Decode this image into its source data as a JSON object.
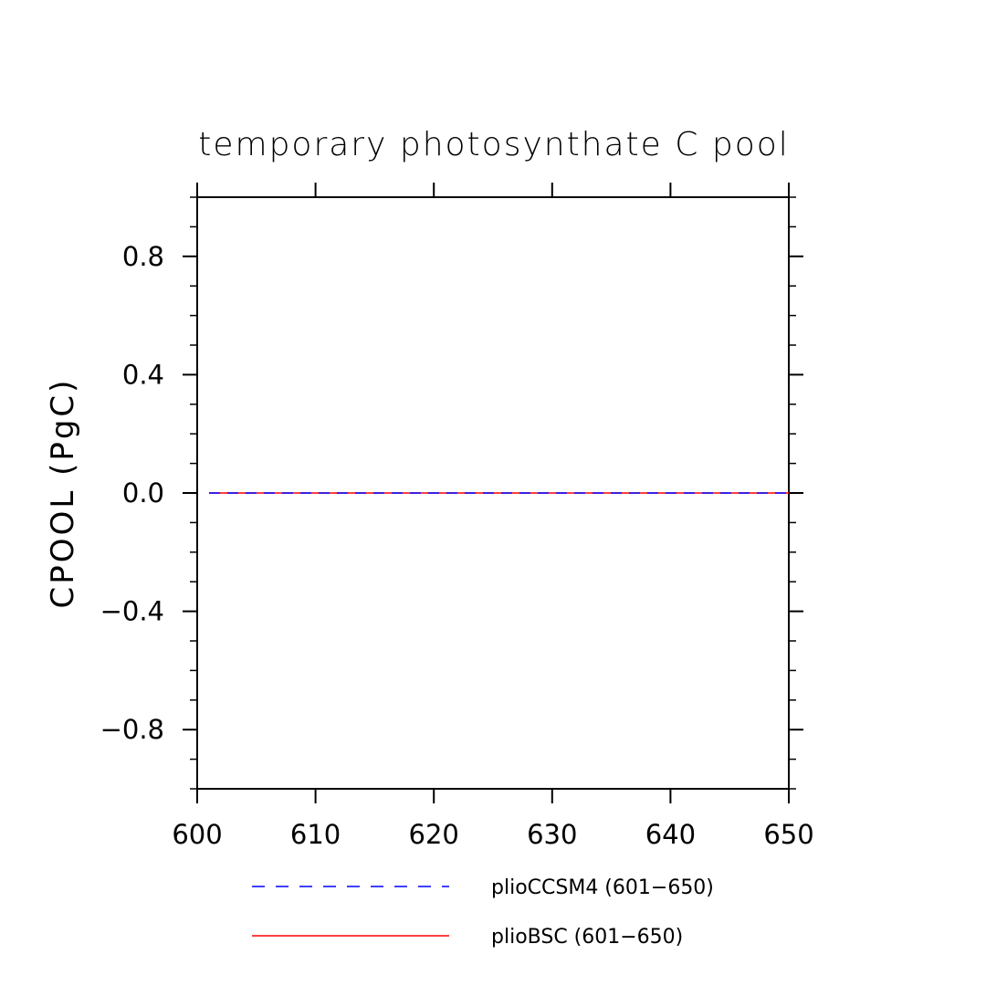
{
  "chart_data": {
    "type": "line",
    "title": "temporary photosynthate C pool",
    "xlabel": "",
    "ylabel": "CPOOL  (PgC)",
    "xlim": [
      600,
      650
    ],
    "ylim": [
      -1.0,
      1.0
    ],
    "x_ticks": [
      600,
      610,
      620,
      630,
      640,
      650
    ],
    "x_tick_labels": [
      "600",
      "610",
      "620",
      "630",
      "640",
      "650"
    ],
    "y_ticks": [
      -0.8,
      -0.4,
      0.0,
      0.4,
      0.8
    ],
    "y_tick_labels": [
      "−0.8",
      "−0.4",
      "0.0",
      "0.4",
      "0.8"
    ],
    "grid": false,
    "legend_position": "bottom",
    "series": [
      {
        "name": "plioCCSM4 (601−650)",
        "color": "#0000ff",
        "style": "dashed",
        "x": [
          601,
          650
        ],
        "y": [
          0.0,
          0.0
        ]
      },
      {
        "name": "plioBSC (601−650)",
        "color": "#ff0000",
        "style": "solid",
        "x": [
          601,
          650
        ],
        "y": [
          0.0,
          0.0
        ]
      }
    ]
  }
}
